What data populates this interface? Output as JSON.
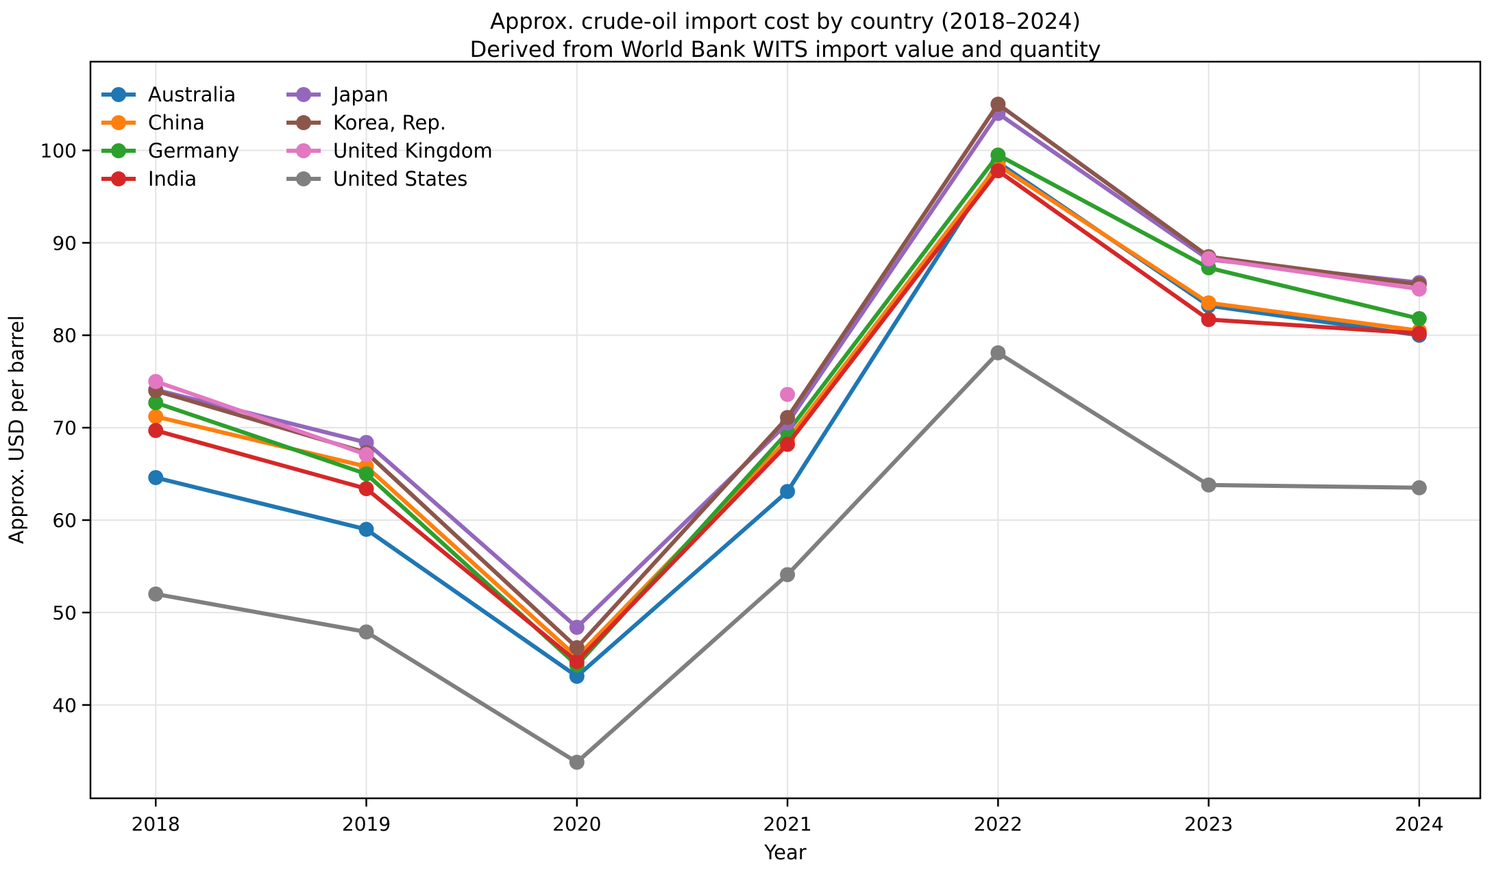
{
  "chart_data": {
    "type": "line",
    "title": "Approx. crude-oil import cost by country (2018–2024)",
    "subtitle": "Derived from World Bank WITS import value and quantity",
    "xlabel": "Year",
    "ylabel": "Approx. USD per barrel",
    "x": [
      2018,
      2019,
      2020,
      2021,
      2022,
      2023,
      2024
    ],
    "xtick_labels": [
      "2018",
      "2019",
      "2020",
      "2021",
      "2022",
      "2023",
      "2024"
    ],
    "yticks": [
      40,
      50,
      60,
      70,
      80,
      90,
      100
    ],
    "xlim": [
      2017.69,
      2024.29
    ],
    "ylim": [
      29.9,
      109.6
    ],
    "grid": true,
    "legend_position": "upper-left",
    "legend_columns": 2,
    "series": [
      {
        "name": "Australia",
        "color": "#1f77b4",
        "values": [
          64.6,
          59.0,
          43.1,
          63.1,
          98.7,
          83.2,
          80.0
        ]
      },
      {
        "name": "China",
        "color": "#ff7f0e",
        "values": [
          71.2,
          65.8,
          45.2,
          68.7,
          98.4,
          83.5,
          80.5
        ]
      },
      {
        "name": "Germany",
        "color": "#2ca02c",
        "values": [
          72.7,
          65.0,
          44.3,
          69.5,
          99.5,
          87.3,
          81.8
        ]
      },
      {
        "name": "India",
        "color": "#d62728",
        "values": [
          69.7,
          63.4,
          44.7,
          68.2,
          97.8,
          81.7,
          80.2
        ]
      },
      {
        "name": "Japan",
        "color": "#9467bd",
        "values": [
          74.1,
          68.4,
          48.4,
          70.5,
          104.0,
          88.2,
          85.7
        ]
      },
      {
        "name": "Korea, Rep.",
        "color": "#8c564b",
        "values": [
          74.0,
          67.3,
          46.2,
          71.1,
          105.0,
          88.5,
          85.5
        ]
      },
      {
        "name": "United Kingdom",
        "color": "#e377c2",
        "values": [
          75.0,
          67.1,
          null,
          73.6,
          null,
          88.3,
          85.0
        ]
      },
      {
        "name": "United States",
        "color": "#7f7f7f",
        "values": [
          52.0,
          47.9,
          33.8,
          54.1,
          78.1,
          63.8,
          63.5
        ]
      }
    ],
    "colors": {
      "grid": "#e4e4e4",
      "spine": "#000000",
      "background": "#ffffff"
    }
  }
}
